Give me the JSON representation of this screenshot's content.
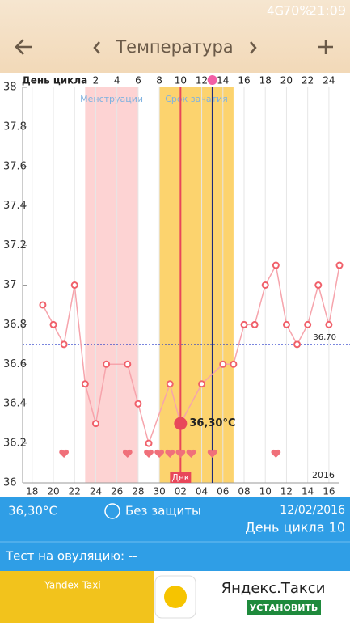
{
  "status_bar": {
    "network": "4G",
    "battery": "70%",
    "time": "21:09"
  },
  "header": {
    "title": "Температура"
  },
  "chart_data": {
    "type": "line",
    "xlim": [
      -0.9,
      29
    ],
    "ylim": [
      36,
      38
    ],
    "yticks": [
      36,
      36.2,
      36.4,
      36.6,
      36.8,
      37,
      37.2,
      37.4,
      37.6,
      37.8,
      38
    ],
    "xticks": [
      {
        "value": 0,
        "label": "18"
      },
      {
        "value": 2,
        "label": "20"
      },
      {
        "value": 4,
        "label": "22"
      },
      {
        "value": 6,
        "label": "24"
      },
      {
        "value": 8,
        "label": "26"
      },
      {
        "value": 10,
        "label": "28"
      },
      {
        "value": 12,
        "label": "30"
      },
      {
        "value": 14,
        "label": "02"
      },
      {
        "value": 16,
        "label": "04"
      },
      {
        "value": 18,
        "label": "06"
      },
      {
        "value": 20,
        "label": "08"
      },
      {
        "value": 22,
        "label": "10"
      },
      {
        "value": 24,
        "label": "12"
      },
      {
        "value": 26,
        "label": "14"
      },
      {
        "value": 28,
        "label": "16"
      }
    ],
    "x2label": "День цикла",
    "x2ticks": [
      {
        "value": 6,
        "label": "2"
      },
      {
        "value": 8,
        "label": "4"
      },
      {
        "value": 10,
        "label": "6"
      },
      {
        "value": 12,
        "label": "8"
      },
      {
        "value": 14,
        "label": "10"
      },
      {
        "value": 16,
        "label": "12"
      },
      {
        "value": 18,
        "label": "14"
      },
      {
        "value": 20,
        "label": "16"
      },
      {
        "value": 22,
        "label": "18"
      },
      {
        "value": 24,
        "label": "20"
      },
      {
        "value": 26,
        "label": "22"
      },
      {
        "value": 28,
        "label": "24"
      }
    ],
    "series": [
      {
        "color": "#f0606a",
        "x": [
          1,
          2,
          3,
          4,
          5,
          6,
          7,
          9,
          10,
          11,
          13,
          14,
          16,
          18,
          19,
          20,
          21,
          22,
          23,
          24,
          25,
          26,
          27,
          28,
          29
        ],
        "values": [
          36.9,
          36.8,
          36.7,
          37.0,
          36.5,
          36.3,
          36.6,
          36.6,
          36.4,
          36.2,
          36.5,
          36.3,
          36.5,
          36.6,
          36.6,
          36.8,
          36.8,
          37.0,
          37.1,
          36.8,
          36.7,
          36.8,
          37.0,
          36.8,
          37.1
        ]
      }
    ],
    "bands": [
      {
        "label": "Менструации",
        "range": [
          5,
          10
        ],
        "color": "#fdd3d3"
      },
      {
        "label": "Срок зачатия",
        "range": [
          12,
          19
        ],
        "color": "#fcd36e"
      }
    ],
    "reference": {
      "value": 36.7,
      "label": "36,70",
      "color": "#2a3fc9"
    },
    "hearts": [
      3,
      9,
      11,
      12,
      13,
      14,
      15,
      17,
      23
    ],
    "selected": {
      "x": 14,
      "value": 36.3,
      "label": "36,30°C",
      "month": "Дек"
    },
    "ovulation_x": 17,
    "year": "2016"
  },
  "info": {
    "temperature": "36,30°C",
    "protection": "Без защиты",
    "date": "12/02/2016",
    "cycle_day": "День цикла 10",
    "ovulation_test": "Тест на овуляцию: --"
  },
  "ad": {
    "image_text": "Yandex Taxi",
    "title": "Яндекс.Такси",
    "button": "УСТАНОВИТЬ"
  }
}
